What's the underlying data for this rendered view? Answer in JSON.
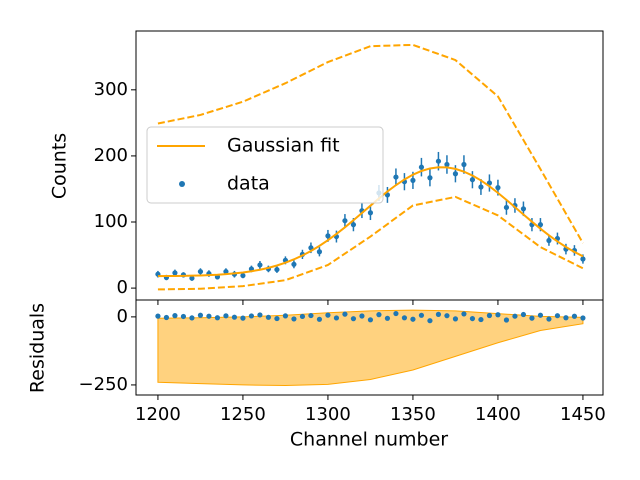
{
  "chart_data": [
    {
      "type": "scatter",
      "ylabel": "Counts",
      "xlim": [
        1187.1,
        1461.8
      ],
      "ylim": [
        -18,
        389
      ],
      "yticks": [
        0,
        100,
        200,
        300
      ],
      "legend": "center left",
      "x": [
        1200,
        1205,
        1210,
        1215,
        1220,
        1225,
        1230,
        1235,
        1240,
        1245,
        1250,
        1255,
        1260,
        1265,
        1270,
        1275,
        1280,
        1285,
        1290,
        1295,
        1300,
        1305,
        1310,
        1315,
        1320,
        1325,
        1330,
        1335,
        1340,
        1345,
        1350,
        1355,
        1360,
        1365,
        1370,
        1375,
        1380,
        1385,
        1390,
        1395,
        1400,
        1405,
        1410,
        1415,
        1420,
        1425,
        1430,
        1435,
        1440,
        1445,
        1450
      ],
      "series": [
        {
          "name": "Gaussian fit",
          "type": "line",
          "color": "#ffa500",
          "values": [
            18.2,
            18.3,
            18.4,
            18.5,
            18.8,
            19.1,
            19.6,
            20.2,
            21.1,
            22.2,
            23.6,
            25.5,
            27.8,
            30.6,
            34.2,
            38.4,
            43.5,
            49.4,
            56.2,
            63.9,
            72.5,
            81.9,
            92,
            102.6,
            113.7,
            124.7,
            135.7,
            146.2,
            155.8,
            164.4,
            171.6,
            177.2,
            181,
            182.8,
            182.6,
            180.4,
            176.2,
            170.3,
            162.9,
            154,
            144.1,
            133.5,
            122.5,
            111.4,
            100.5,
            89.9,
            79.9,
            70.6,
            62.2,
            54.7,
            48.1
          ]
        },
        {
          "type": "line",
          "style": "dashed",
          "color": "#ffa500",
          "x": [
            1200,
            1225,
            1250,
            1275,
            1300,
            1325,
            1350,
            1375,
            1400,
            1425,
            1450
          ],
          "values": [
            249,
            262,
            282,
            310,
            342,
            366,
            368,
            345,
            290,
            180,
            68
          ]
        },
        {
          "type": "line",
          "style": "dashed",
          "color": "#ffa500",
          "x": [
            1200,
            1225,
            1250,
            1275,
            1300,
            1325,
            1350,
            1375,
            1400,
            1425,
            1450
          ],
          "values": [
            -2,
            -1,
            3,
            12,
            35,
            78,
            125,
            138,
            110,
            62,
            30
          ]
        },
        {
          "name": "data",
          "type": "scatter",
          "color": "#1f77b4",
          "values": [
            21,
            16,
            23,
            20,
            15,
            25,
            22,
            17,
            25,
            21,
            19,
            29,
            35,
            29,
            28,
            42,
            36,
            51,
            61,
            55,
            79,
            78,
            102,
            96,
            117,
            114,
            144,
            141,
            168,
            161,
            163,
            183,
            167,
            192,
            187,
            173,
            187,
            164,
            153,
            159,
            152,
            122,
            125,
            120,
            96,
            96,
            72,
            75,
            59,
            57,
            44
          ],
          "errors": [
            5,
            4,
            5,
            4,
            4,
            5,
            5,
            4,
            5,
            5,
            4,
            5,
            6,
            5,
            5,
            6,
            6,
            7,
            8,
            7,
            9,
            9,
            10,
            10,
            11,
            11,
            12,
            12,
            13,
            13,
            13,
            14,
            13,
            14,
            14,
            13,
            14,
            13,
            12,
            13,
            12,
            11,
            11,
            11,
            10,
            10,
            8,
            9,
            8,
            8,
            7
          ]
        }
      ]
    },
    {
      "type": "scatter",
      "xlabel": "Channel number",
      "ylabel": "Residuals",
      "xlim": [
        1187.1,
        1461.8
      ],
      "xticks": [
        1200,
        1250,
        1300,
        1350,
        1400,
        1450
      ],
      "ylim": [
        -287,
        62
      ],
      "yticks": [
        {
          "value": -250,
          "label": "−250"
        },
        0
      ],
      "x": [
        1200,
        1205,
        1210,
        1215,
        1220,
        1225,
        1230,
        1235,
        1240,
        1245,
        1250,
        1255,
        1260,
        1265,
        1270,
        1275,
        1280,
        1285,
        1290,
        1295,
        1300,
        1305,
        1310,
        1315,
        1320,
        1325,
        1330,
        1335,
        1340,
        1345,
        1350,
        1355,
        1360,
        1365,
        1370,
        1375,
        1380,
        1385,
        1390,
        1395,
        1400,
        1405,
        1410,
        1415,
        1420,
        1425,
        1430,
        1435,
        1440,
        1445,
        1450
      ],
      "series": [
        {
          "type": "band",
          "color": "#ffa500",
          "x": [
            1200,
            1225,
            1250,
            1275,
            1300,
            1325,
            1350,
            1375,
            1400,
            1425,
            1450
          ],
          "lower": [
            -240,
            -245,
            -250,
            -252,
            -248,
            -230,
            -195,
            -145,
            -95,
            -50,
            -25
          ],
          "upper": [
            -5,
            -3,
            0,
            6,
            15,
            22,
            25,
            22,
            12,
            2,
            -2
          ]
        },
        {
          "type": "scatter",
          "color": "#1f77b4",
          "values": [
            2.8,
            -2.3,
            4.6,
            1.5,
            -3.8,
            5.9,
            2.4,
            -3.2,
            3.9,
            -1.2,
            -4.6,
            3.5,
            7.2,
            -1.6,
            -6.2,
            3.6,
            -7.5,
            1.6,
            4.8,
            -8.9,
            6.5,
            -3.9,
            10,
            -6.6,
            3.3,
            -10.7,
            8.3,
            -5.2,
            12.2,
            -3.4,
            -8.6,
            5.8,
            -14,
            9.2,
            4.4,
            -7.4,
            10.8,
            -6.3,
            -9.9,
            5,
            7.9,
            -11.5,
            2.5,
            8.6,
            -4.5,
            6.1,
            -7.9,
            4.4,
            -3.2,
            2.3,
            -4.1
          ]
        }
      ]
    }
  ]
}
